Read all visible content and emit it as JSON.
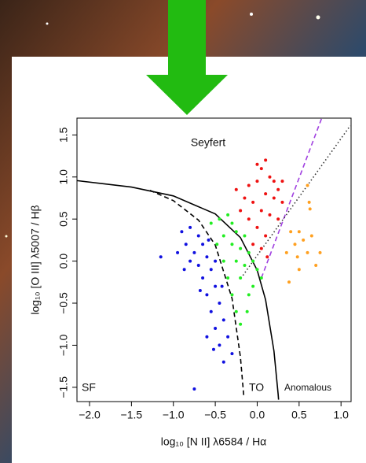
{
  "chart_data": {
    "type": "scatter",
    "xlabel": "log₁₀ [N II] λ6584 / Hα",
    "ylabel": "log₁₀ [O III] λ5007 / Hβ",
    "annotations": [
      "Seyfert",
      "SF",
      "TO",
      "Anomalous"
    ],
    "xlim": [
      -2.15,
      1.12
    ],
    "ylim": [
      -1.67,
      1.7
    ],
    "xticks": [
      {
        "value": -2,
        "label": "−2.0"
      },
      {
        "value": -1.5,
        "label": "−1.5"
      },
      {
        "value": -1,
        "label": "−1.0"
      },
      {
        "value": -0.5,
        "label": "−0.5"
      },
      {
        "value": 0,
        "label": "0.0"
      },
      {
        "value": 0.5,
        "label": "0.5"
      },
      {
        "value": 1,
        "label": "1.0"
      }
    ],
    "yticks": [
      {
        "value": -1.5,
        "label": "−1.5"
      },
      {
        "value": -1,
        "label": "−1.0"
      },
      {
        "value": -0.5,
        "label": "−0.5"
      },
      {
        "value": 0,
        "label": "0.0"
      },
      {
        "value": 0.5,
        "label": "0.5"
      },
      {
        "value": 1,
        "label": "1.0"
      },
      {
        "value": 1.5,
        "label": "1.5"
      }
    ],
    "series": [
      {
        "color": "#1010e0",
        "x": [
          -0.9,
          -0.85,
          -0.8,
          -0.75,
          -0.7,
          -0.7,
          -0.65,
          -0.65,
          -0.6,
          -0.6,
          -0.55,
          -0.55,
          -0.5,
          -0.5,
          -0.45,
          -0.45,
          -0.4,
          -0.4,
          -0.35,
          -0.5,
          -0.8,
          -0.95,
          -1.15,
          -0.6,
          -0.3,
          -0.42,
          -0.68,
          -0.58,
          -0.87,
          -0.52,
          -0.75
        ],
        "values": [
          0.35,
          0.2,
          0.4,
          0.1,
          0.3,
          -0.05,
          0.2,
          -0.2,
          0.05,
          -0.4,
          -0.1,
          -0.6,
          -0.3,
          -0.8,
          -0.5,
          -1.0,
          -0.7,
          -1.2,
          -0.9,
          0.0,
          0.0,
          0.1,
          0.05,
          -0.9,
          -1.1,
          -0.3,
          -0.35,
          0.25,
          -0.1,
          -1.05,
          -1.52
        ]
      },
      {
        "color": "#22ee22",
        "x": [
          -0.55,
          -0.45,
          -0.4,
          -0.35,
          -0.3,
          -0.3,
          -0.25,
          -0.25,
          -0.2,
          -0.2,
          -0.15,
          -0.15,
          -0.1,
          -0.1,
          -0.05,
          -0.05,
          0.0,
          -0.3,
          -0.25,
          -0.2,
          -0.35,
          -0.4,
          0.05,
          -0.12,
          -0.48
        ],
        "values": [
          0.45,
          0.5,
          0.3,
          0.55,
          0.2,
          0.45,
          0.0,
          0.35,
          0.15,
          -0.2,
          0.3,
          -0.05,
          0.1,
          -0.4,
          0.0,
          -0.3,
          -0.1,
          -0.4,
          -0.6,
          -0.75,
          -0.2,
          0.0,
          -0.2,
          -0.6,
          0.2
        ]
      },
      {
        "color": "#ee1111",
        "x": [
          -0.2,
          -0.15,
          -0.1,
          -0.1,
          -0.05,
          0.0,
          0.0,
          0.05,
          0.05,
          0.1,
          0.1,
          0.15,
          0.15,
          0.2,
          0.2,
          0.25,
          0.25,
          0.3,
          -0.05,
          0.05,
          0.1,
          -0.25,
          0.0,
          0.12,
          0.3
        ],
        "values": [
          0.6,
          0.75,
          0.5,
          0.9,
          0.7,
          0.4,
          0.95,
          0.6,
          1.1,
          0.8,
          0.3,
          1.0,
          0.55,
          0.75,
          0.95,
          0.5,
          0.85,
          0.7,
          0.2,
          0.15,
          1.2,
          0.85,
          1.15,
          0.05,
          0.95
        ]
      },
      {
        "color": "#ffa020",
        "x": [
          0.35,
          0.4,
          0.45,
          0.5,
          0.55,
          0.6,
          0.65,
          0.62,
          0.63,
          0.6,
          0.75,
          0.7,
          0.5,
          0.48,
          0.38
        ],
        "values": [
          0.1,
          0.35,
          0.2,
          -0.1,
          0.25,
          0.1,
          0.3,
          0.7,
          0.62,
          0.9,
          0.1,
          -0.05,
          0.35,
          0.05,
          -0.25
        ]
      }
    ],
    "curves": [
      {
        "style": "solid",
        "color": "#000000",
        "x": [
          -2.15,
          -1.5,
          -1.0,
          -0.5,
          -0.2,
          0.0,
          0.1,
          0.2,
          0.25,
          0.255
        ],
        "values": [
          0.957,
          0.88,
          0.775,
          0.561,
          0.28,
          -0.108,
          -0.459,
          -1.069,
          -1.583,
          -1.647
        ]
      },
      {
        "style": "dashed",
        "color": "#000000",
        "x": [
          -1.28,
          -1.0,
          -0.7,
          -0.5,
          -0.3,
          -0.2,
          -0.16
        ],
        "values": [
          0.841,
          0.719,
          0.487,
          0.191,
          -0.443,
          -1.14,
          -1.605
        ]
      },
      {
        "style": "dashed",
        "color": "#a040e0",
        "x": [
          0.05,
          0.77
        ],
        "values": [
          -0.2,
          1.7
        ]
      },
      {
        "style": "dotted",
        "color": "#333333",
        "x": [
          -0.17,
          1.11
        ],
        "values": [
          -0.17,
          1.61
        ]
      }
    ]
  }
}
